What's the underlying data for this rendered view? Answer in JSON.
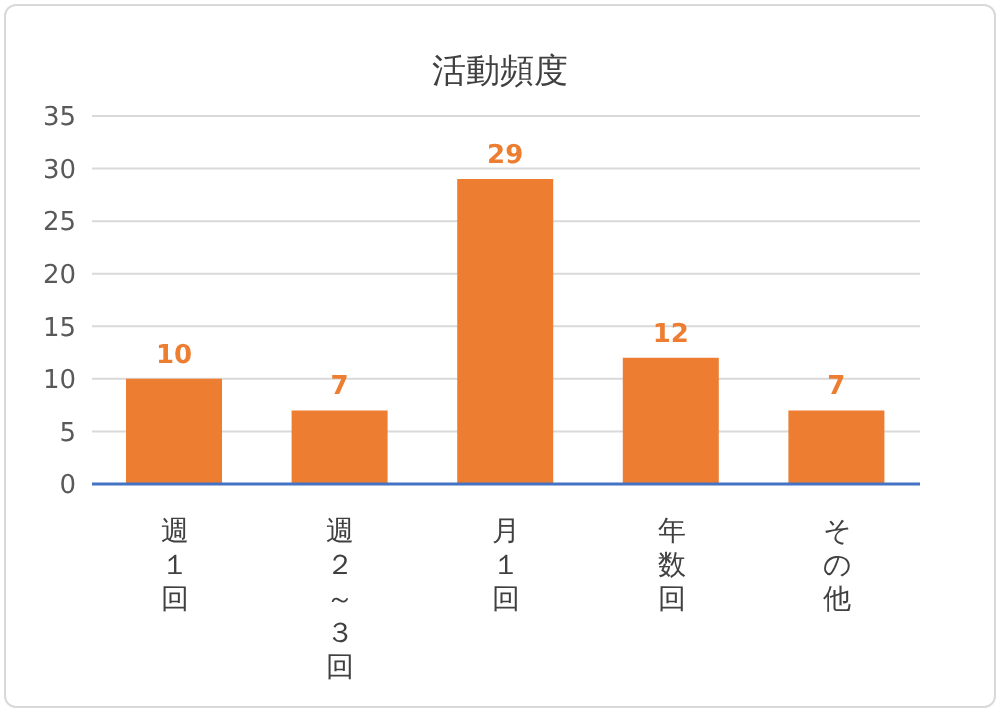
{
  "chart_data": {
    "type": "bar",
    "title": "活動頻度",
    "categories": [
      "週１回",
      "週２～３回",
      "月１回",
      "年数回",
      "その他"
    ],
    "values": [
      10,
      7,
      29,
      12,
      7
    ],
    "color": "#ed7d31",
    "ylim": [
      0,
      35
    ],
    "yticks": [
      0,
      5,
      10,
      15,
      20,
      25,
      30,
      35
    ],
    "grid": "y",
    "data_labels": true
  }
}
